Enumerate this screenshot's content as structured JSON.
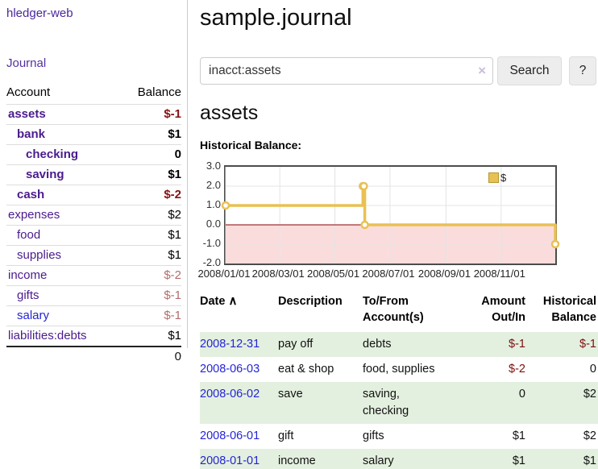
{
  "colors": {
    "brand_purple": "#4a279b",
    "account_link_purple": "#4a1b8d",
    "unvisited_link_blue": "#2424d6",
    "negative_bold_red": "#871111",
    "negative_muted_red": "#b26d6d",
    "table_negative_red": "#7c0f0f",
    "row_shade_green": "#e4f0df",
    "chart_line_gold": "#e9c153",
    "chart_negative_region_pink": "#fbdcdc",
    "chart_zero_line_red": "#8b0000"
  },
  "sidebar": {
    "brand": "hledger-web",
    "nav": {
      "journal_label": "Journal"
    },
    "accounts_table": {
      "headers": {
        "account": "Account",
        "balance": "Balance"
      },
      "rows": [
        {
          "name": "assets",
          "balance": "$-1",
          "indent": 1,
          "bold": true,
          "negative": true
        },
        {
          "name": "bank",
          "balance": "$1",
          "indent": 2,
          "bold": true,
          "negative": false
        },
        {
          "name": "checking",
          "balance": "0",
          "indent": 3,
          "bold": true,
          "negative": false
        },
        {
          "name": "saving",
          "balance": "$1",
          "indent": 3,
          "bold": true,
          "negative": false
        },
        {
          "name": "cash",
          "balance": "$-2",
          "indent": 2,
          "bold": true,
          "negative": true
        },
        {
          "name": "expenses",
          "balance": "$2",
          "indent": 1,
          "bold": false,
          "negative": false
        },
        {
          "name": "food",
          "balance": "$1",
          "indent": 2,
          "bold": false,
          "negative": false
        },
        {
          "name": "supplies",
          "balance": "$1",
          "indent": 2,
          "bold": false,
          "negative": false
        },
        {
          "name": "income",
          "balance": "$-2",
          "indent": 1,
          "bold": false,
          "negative": true
        },
        {
          "name": "gifts",
          "balance": "$-1",
          "indent": 2,
          "bold": false,
          "negative": true
        },
        {
          "name": "salary",
          "balance": "$-1",
          "indent": 2,
          "bold": false,
          "negative": true,
          "link_color": "blue"
        },
        {
          "name": "liabilities:debts",
          "balance": "$1",
          "indent": 1,
          "bold": false,
          "negative": false
        }
      ],
      "total": "0"
    }
  },
  "header": {
    "title": "sample.journal"
  },
  "search": {
    "query": "inacct:assets",
    "clear_icon": "×",
    "button_label": "Search",
    "help_label": "?"
  },
  "account_page": {
    "heading": "assets",
    "chart_title": "Historical Balance:"
  },
  "chart_data": {
    "type": "line",
    "step": true,
    "title": "Historical Balance",
    "x_range": [
      "2008/01/01",
      "2008/12/31"
    ],
    "ylim": [
      -2,
      3
    ],
    "yticks": [
      "3.0",
      "2.0",
      "1.0",
      "0.0",
      "-1.0",
      "-2.0"
    ],
    "xticks": [
      "2008/01/01",
      "2008/03/01",
      "2008/05/01",
      "2008/07/01",
      "2008/09/01",
      "2008/11/01"
    ],
    "series": [
      {
        "name": "$",
        "color": "#e9c153",
        "points": [
          [
            "2008/01/01",
            1
          ],
          [
            "2008/06/01",
            2
          ],
          [
            "2008/06/02",
            2
          ],
          [
            "2008/06/03",
            0
          ],
          [
            "2008/12/31",
            -1
          ]
        ]
      }
    ],
    "negative_region_color": "#fbdcdc",
    "zero_line_color": "#8b0000",
    "grid": true,
    "legend_position": "top-right",
    "legend": [
      {
        "label": "$",
        "color": "#e9c153"
      }
    ]
  },
  "register_table": {
    "headers": {
      "date": "Date",
      "sort_icon": "∧",
      "description": "Description",
      "accounts": "To/From\nAccount(s)",
      "amount": "Amount\nOut/In",
      "balance": "Historical\nBalance"
    },
    "rows": [
      {
        "date": "2008-12-31",
        "description": "pay off",
        "accounts": "debts",
        "amount": "$-1",
        "balance": "$-1",
        "amount_negative": true,
        "balance_negative": true,
        "shaded": true
      },
      {
        "date": "2008-06-03",
        "description": "eat & shop",
        "accounts": "food, supplies",
        "amount": "$-2",
        "balance": "0",
        "amount_negative": true,
        "balance_negative": false,
        "shaded": false
      },
      {
        "date": "2008-06-02",
        "description": "save",
        "accounts": "saving,\nchecking",
        "amount": "0",
        "balance": "$2",
        "amount_negative": false,
        "balance_negative": false,
        "shaded": true
      },
      {
        "date": "2008-06-01",
        "description": "gift",
        "accounts": "gifts",
        "amount": "$1",
        "balance": "$2",
        "amount_negative": false,
        "balance_negative": false,
        "shaded": false
      },
      {
        "date": "2008-01-01",
        "description": "income",
        "accounts": "salary",
        "amount": "$1",
        "balance": "$1",
        "amount_negative": false,
        "balance_negative": false,
        "shaded": true
      }
    ]
  }
}
